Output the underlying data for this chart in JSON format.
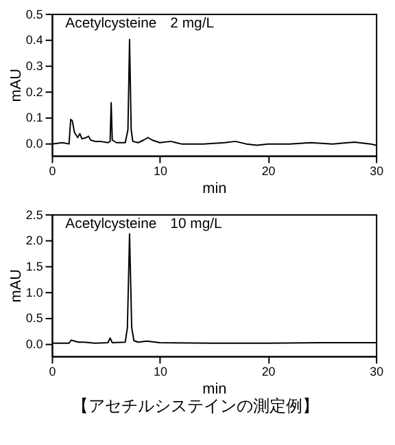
{
  "chart_data": [
    {
      "type": "line",
      "title": "Acetylcysteine　2 mg/L",
      "xlabel": "min",
      "ylabel": "mAU",
      "xlim": [
        0,
        30
      ],
      "xticks": [
        0,
        10,
        20,
        30
      ],
      "ylim": [
        -0.05,
        0.5
      ],
      "yticks": [
        {
          "value": 0,
          "label": "0.0"
        },
        {
          "value": 0.1,
          "label": "0.1"
        },
        {
          "value": 0.2,
          "label": "0.2"
        },
        {
          "value": 0.3,
          "label": "0.3"
        },
        {
          "value": 0.4,
          "label": "0.4"
        },
        {
          "value": 0.5,
          "label": "0.5"
        }
      ],
      "grid": false,
      "series": [
        {
          "color": "#000000",
          "x": [
            0,
            1,
            1.6,
            1.75,
            1.9,
            2.1,
            2.4,
            2.6,
            2.8,
            3.2,
            3.4,
            3.6,
            4,
            4.5,
            5.2,
            5.4,
            5.5,
            5.6,
            6,
            6.8,
            7.05,
            7.2,
            7.35,
            7.5,
            8,
            8.5,
            8.9,
            9.3,
            10,
            11,
            12,
            14,
            16,
            17,
            18,
            19,
            20,
            22,
            24,
            26,
            28,
            29.5,
            30
          ],
          "values": [
            -0.005,
            0,
            -0.005,
            0.09,
            0.085,
            0.04,
            0.02,
            0.035,
            0.015,
            0.02,
            0.025,
            0.01,
            0.005,
            0.005,
            0,
            0.005,
            0.155,
            0.01,
            0,
            0,
            0.05,
            0.4,
            0.05,
            0.005,
            0,
            0.01,
            0.02,
            0.01,
            0,
            0.005,
            -0.005,
            -0.005,
            0,
            0.005,
            -0.005,
            -0.01,
            -0.005,
            -0.005,
            0,
            -0.005,
            0.002,
            -0.005,
            -0.01
          ]
        }
      ]
    },
    {
      "type": "line",
      "title": "Acetylcysteine　10 mg/L",
      "xlabel": "min",
      "ylabel": "mAU",
      "xlim": [
        0,
        30
      ],
      "xticks": [
        0,
        10,
        20,
        30
      ],
      "ylim": [
        -0.25,
        2.5
      ],
      "yticks": [
        {
          "value": 0,
          "label": "0.0"
        },
        {
          "value": 0.5,
          "label": "0.5"
        },
        {
          "value": 1,
          "label": "1.0"
        },
        {
          "value": 1.5,
          "label": "1.5"
        },
        {
          "value": 2,
          "label": "2.0"
        },
        {
          "value": 2.5,
          "label": "2.5"
        }
      ],
      "grid": false,
      "annotations": [
        "【アセチルシステインの測定例】"
      ],
      "series": [
        {
          "color": "#000000",
          "x": [
            0,
            1.6,
            1.8,
            2.1,
            2.5,
            3,
            4,
            5.2,
            5.4,
            5.6,
            6.8,
            7,
            7.2,
            7.4,
            7.6,
            8,
            8.8,
            10,
            15,
            20,
            25,
            30
          ],
          "values": [
            0,
            0,
            0.06,
            0.04,
            0.02,
            0.02,
            0,
            0.01,
            0.1,
            0.01,
            0.02,
            0.3,
            2.12,
            0.3,
            0.05,
            0.02,
            0.04,
            0.01,
            0,
            0,
            0.01,
            0.01
          ]
        }
      ]
    }
  ]
}
